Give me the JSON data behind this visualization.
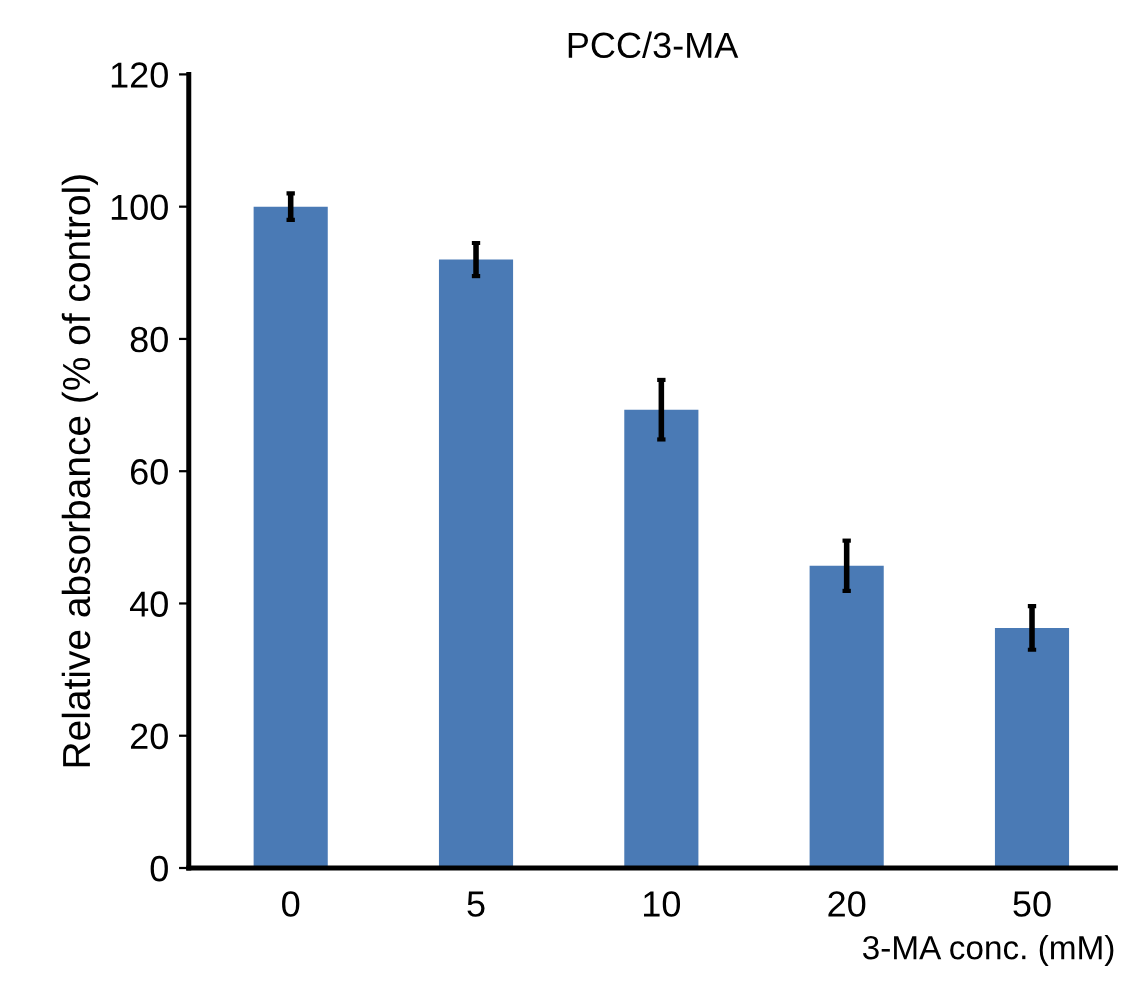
{
  "chart_data": {
    "type": "bar",
    "title": "PCC/3-MA",
    "xlabel": "3-MA conc. (mM)",
    "ylabel": "Relative absorbance (% of control)",
    "categories": [
      "0",
      "5",
      "10",
      "20",
      "50"
    ],
    "values": [
      100,
      92,
      69.3,
      45.7,
      36.3
    ],
    "errors": [
      2,
      2.5,
      4.5,
      3.8,
      3.3
    ],
    "color": "#4a7ab5",
    "ylim": [
      0,
      120
    ],
    "yticks": [
      0,
      20,
      40,
      60,
      80,
      100,
      120
    ],
    "grid": false
  }
}
